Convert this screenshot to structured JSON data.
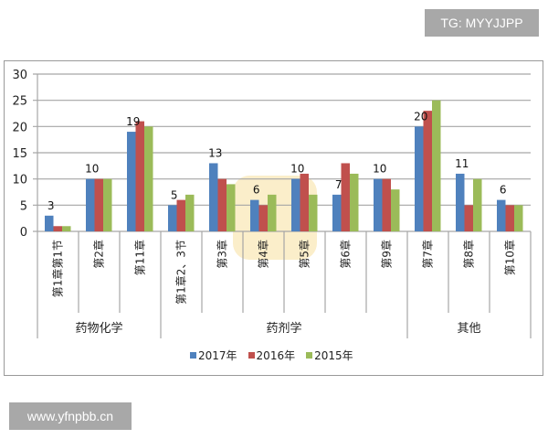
{
  "watermarks": {
    "top_right": "TG: MYYJJPP",
    "bottom_left": "www.yfnpbb.cn"
  },
  "colors": {
    "2017": "#4f81bd",
    "2016": "#c0504d",
    "2015": "#9bbb59",
    "grid": "#a6a6a6",
    "logo_watermark": "#f7d98a"
  },
  "chart_data": {
    "type": "bar",
    "title": "",
    "xlabel": "",
    "ylabel": "",
    "ylim": [
      0,
      30
    ],
    "yticks": [
      0,
      5,
      10,
      15,
      20,
      25,
      30
    ],
    "grid": true,
    "legend_position": "bottom",
    "groups": [
      {
        "name": "药物化学",
        "categories": [
          "第1章第1节",
          "第2章",
          "第11章"
        ]
      },
      {
        "name": "药剂学",
        "categories": [
          "第1章2、3节",
          "第3章",
          "第4章",
          "第5章",
          "第6章",
          "第9章"
        ]
      },
      {
        "name": "其他",
        "categories": [
          "第7章",
          "第8章",
          "第10章"
        ]
      }
    ],
    "categories": [
      "第1章第1节",
      "第2章",
      "第11章",
      "第1章2、3节",
      "第3章",
      "第4章",
      "第5章",
      "第6章",
      "第9章",
      "第7章",
      "第8章",
      "第10章"
    ],
    "series": [
      {
        "name": "2017年",
        "values": [
          3,
          10,
          19,
          5,
          13,
          6,
          10,
          7,
          10,
          20,
          11,
          6
        ]
      },
      {
        "name": "2016年",
        "values": [
          1,
          10,
          21,
          6,
          10,
          5,
          11,
          13,
          10,
          23,
          5,
          5
        ]
      },
      {
        "name": "2015年",
        "values": [
          1,
          10,
          20,
          7,
          9,
          7,
          7,
          11,
          8,
          25,
          10,
          5
        ]
      }
    ],
    "data_labels": [
      3,
      10,
      19,
      5,
      13,
      6,
      10,
      7,
      10,
      20,
      11,
      6
    ],
    "data_labels_series": "2017年"
  },
  "legend": {
    "items": [
      {
        "label": "2017年"
      },
      {
        "label": "2016年"
      },
      {
        "label": "2015年"
      }
    ]
  }
}
